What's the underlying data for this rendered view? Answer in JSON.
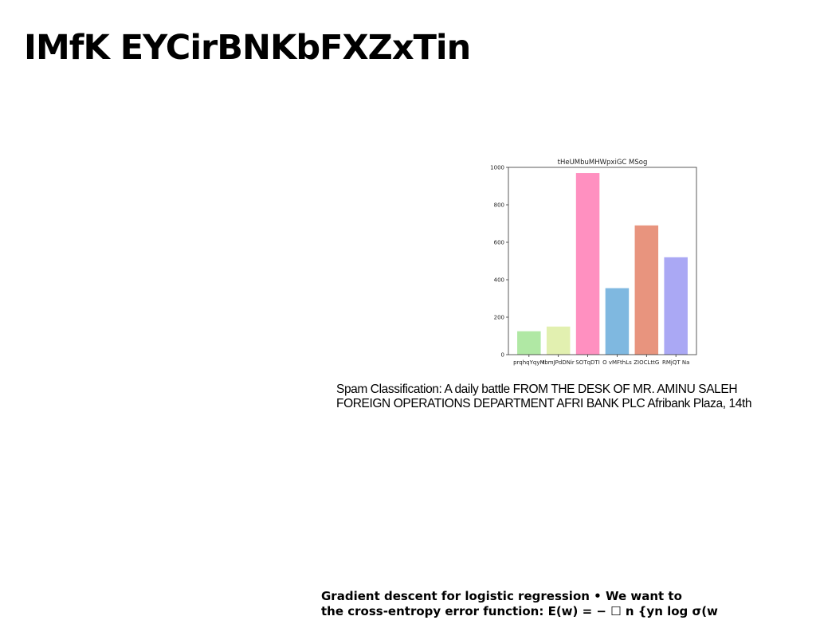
{
  "slide": {
    "title": "IMfK EYCirBNKbFXZxTin"
  },
  "caption": {
    "line1": "Spam Classification: A daily battle FROM THE DESK OF MR. AMINU SALEH",
    "line2": "FOREIGN OPERATIONS DEPARTMENT AFRI BANK PLC Afribank Plaza, 14th"
  },
  "footnote": {
    "line1": "Gradient descent for logistic regression • We want to",
    "line2": "the cross-entropy error function: E(w) = − ☐ n {yn log σ(w"
  },
  "chart_data": {
    "type": "bar",
    "title": "tHeUMbuMHWpxiGC MSog",
    "categories": [
      "prqhqYqyM",
      "tbmJPdDNir",
      "SOTqDTI",
      "O vMFthLs",
      "ZIOCLttG",
      "RMjQT Na"
    ],
    "values": [
      125,
      150,
      970,
      355,
      690,
      520
    ],
    "colors": [
      "#b0e8a4",
      "#e2f0b0",
      "#ff90c0",
      "#7fb8e0",
      "#e8947e",
      "#aaa8f4"
    ],
    "ylim": [
      0,
      1000
    ],
    "yticks": [
      0,
      200,
      400,
      600,
      800,
      1000
    ],
    "grid": false
  }
}
